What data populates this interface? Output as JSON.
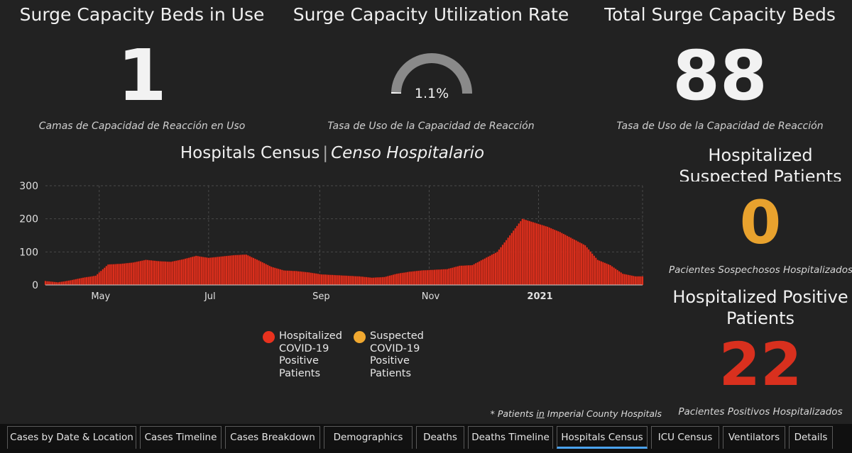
{
  "kpis": {
    "beds_in_use": {
      "title": "Surge Capacity Beds in Use",
      "value": "1",
      "subtitle": "Camas de Capacidad de Reacción en Uso"
    },
    "utilization": {
      "title": "Surge Capacity Utilization Rate",
      "value": "1.1%",
      "gauge_fraction": 0.011,
      "subtitle": "Tasa de Uso de la Capacidad de Reacción"
    },
    "total_beds": {
      "title": "Total Surge Capacity Beds",
      "value": "88",
      "subtitle": "Tasa de Uso de la Capacidad de Reacción"
    }
  },
  "census": {
    "title": "Hospitals Census",
    "title_es": "Censo Hospitalario",
    "separator": "|",
    "footnote_pre": "* Patients ",
    "footnote_mid": "in",
    "footnote_post": " Imperial County Hospitals"
  },
  "legend": [
    {
      "label": "Hospitalized COVID-19 Positive Patients",
      "color": "#e8321e"
    },
    {
      "label": "Suspected COVID-19 Positive Patients",
      "color": "#f0a830"
    }
  ],
  "side": {
    "suspected": {
      "title": "Hospitalized Suspected Patients",
      "value": "0",
      "subtitle": "Pacientes Sospechosos Hospitalizados",
      "color": "#e8a22e"
    },
    "positive": {
      "title": "Hospitalized Positive Patients",
      "value": "22",
      "subtitle": "Pacientes Positivos Hospitalizados",
      "color": "#d9301e"
    }
  },
  "tabs": [
    {
      "label": "Cases by Date & Location",
      "active": false
    },
    {
      "label": "Cases Timeline",
      "active": false
    },
    {
      "label": "Cases Breakdown",
      "active": false
    },
    {
      "label": "Demographics",
      "active": false
    },
    {
      "label": "Deaths",
      "active": false
    },
    {
      "label": "Deaths Timeline",
      "active": false
    },
    {
      "label": "Hospitals Census",
      "active": true
    },
    {
      "label": "ICU Census",
      "active": false
    },
    {
      "label": "Ventilators",
      "active": false
    },
    {
      "label": "Details",
      "active": false
    }
  ],
  "chart_data": {
    "type": "bar",
    "x_start": "2020-04-01",
    "x_end": "2021-02-28",
    "ylim": [
      0,
      300
    ],
    "yticks": [
      0,
      100,
      200,
      300
    ],
    "xtick_labels": [
      "May",
      "Jul",
      "Sep",
      "Nov",
      "2021"
    ],
    "xtick_dates": [
      "2020-05-01",
      "2020-07-01",
      "2020-09-01",
      "2020-11-01",
      "2021-01-01"
    ],
    "grid": true,
    "bar_color": "#e8321e",
    "series": [
      {
        "name": "Hospitalized COVID-19 Positive Patients",
        "x": [
          "2020-04-01",
          "2020-04-08",
          "2020-04-15",
          "2020-04-22",
          "2020-04-29",
          "2020-05-06",
          "2020-05-13",
          "2020-05-20",
          "2020-05-27",
          "2020-06-03",
          "2020-06-10",
          "2020-06-17",
          "2020-06-24",
          "2020-07-01",
          "2020-07-08",
          "2020-07-15",
          "2020-07-22",
          "2020-07-29",
          "2020-08-05",
          "2020-08-12",
          "2020-08-19",
          "2020-08-26",
          "2020-09-02",
          "2020-09-09",
          "2020-09-16",
          "2020-09-23",
          "2020-09-30",
          "2020-10-07",
          "2020-10-14",
          "2020-10-21",
          "2020-10-28",
          "2020-11-04",
          "2020-11-11",
          "2020-11-18",
          "2020-11-25",
          "2020-12-02",
          "2020-12-09",
          "2020-12-16",
          "2020-12-23",
          "2020-12-30",
          "2021-01-06",
          "2021-01-13",
          "2021-01-20",
          "2021-01-27",
          "2021-02-03",
          "2021-02-10",
          "2021-02-17",
          "2021-02-24"
        ],
        "values": [
          12,
          8,
          14,
          22,
          28,
          62,
          64,
          68,
          76,
          72,
          70,
          78,
          88,
          82,
          86,
          90,
          92,
          74,
          55,
          44,
          42,
          38,
          32,
          30,
          28,
          26,
          22,
          24,
          34,
          40,
          44,
          46,
          48,
          58,
          60,
          80,
          100,
          150,
          200,
          188,
          176,
          160,
          140,
          120,
          76,
          60,
          34,
          26
        ]
      }
    ]
  }
}
